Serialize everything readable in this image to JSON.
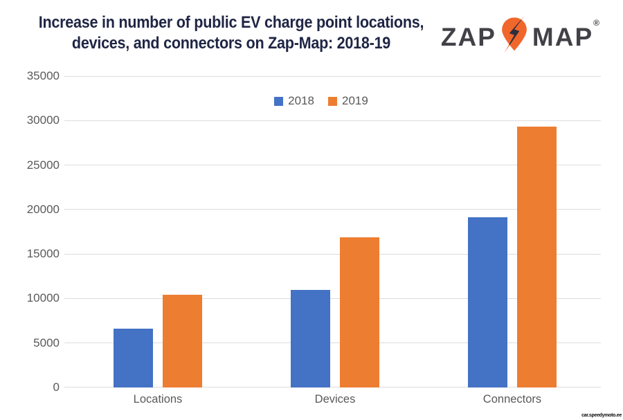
{
  "title": {
    "line1": "Increase in number of public EV charge point locations,",
    "line2": "devices, and connectors on Zap-Map: 2018-19"
  },
  "logo": {
    "zap": "ZAP",
    "map": "MAP",
    "registered": "®",
    "pin_icon": "map-pin-lightning-icon",
    "text_color": "#414147",
    "pin_color": "#f1662b",
    "bolt_color": "#2e2e3d"
  },
  "watermark": "car.speedymoto.ee",
  "colors": {
    "title_text": "#1f2544",
    "axis_text": "#595959",
    "gridline": "#dcdcdc",
    "series_2018": "#4472c4",
    "series_2019": "#ed7d31"
  },
  "chart_data": {
    "type": "bar",
    "title": "Increase in number of public EV charge point locations, devices, and connectors on Zap-Map: 2018-19",
    "categories": [
      "Locations",
      "Devices",
      "Connectors"
    ],
    "series": [
      {
        "name": "2018",
        "color": "#4472c4",
        "values": [
          6600,
          10950,
          19100
        ]
      },
      {
        "name": "2019",
        "color": "#ed7d31",
        "values": [
          10450,
          16850,
          29300
        ]
      }
    ],
    "xlabel": "",
    "ylabel": "",
    "ylim": [
      0,
      35000
    ],
    "yticks": [
      0,
      5000,
      10000,
      15000,
      20000,
      25000,
      30000,
      35000
    ],
    "grid": true,
    "legend_position": "top-center"
  }
}
